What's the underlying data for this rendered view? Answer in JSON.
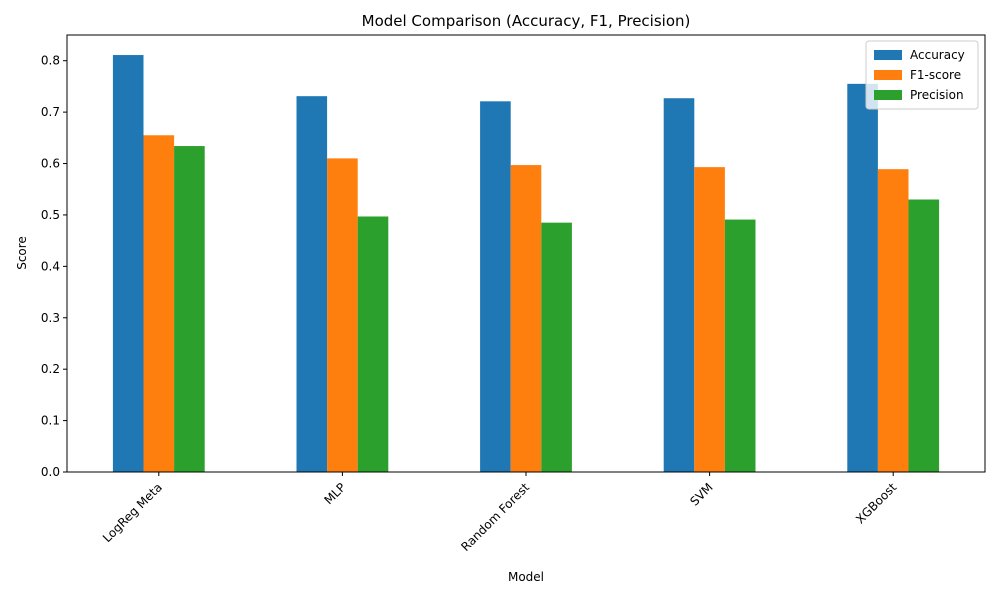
{
  "chart_data": {
    "type": "bar",
    "title": "Model Comparison (Accuracy, F1, Precision)",
    "xlabel": "Model",
    "ylabel": "Score",
    "categories": [
      "LogReg Meta",
      "MLP",
      "Random Forest",
      "SVM",
      "XGBoost"
    ],
    "series": [
      {
        "name": "Accuracy",
        "color": "#1f77b4",
        "values": [
          0.811,
          0.731,
          0.721,
          0.727,
          0.755
        ]
      },
      {
        "name": "F1-score",
        "color": "#ff7f0e",
        "values": [
          0.655,
          0.61,
          0.597,
          0.593,
          0.589
        ]
      },
      {
        "name": "Precision",
        "color": "#2ca02c",
        "values": [
          0.634,
          0.497,
          0.485,
          0.491,
          0.53
        ]
      }
    ],
    "ylim": [
      0,
      0.85
    ],
    "yticks": [
      "0.0",
      "0.1",
      "0.2",
      "0.3",
      "0.4",
      "0.5",
      "0.6",
      "0.7",
      "0.8"
    ],
    "grid": false,
    "legend_position": "top-right",
    "xtick_rotation": "45"
  }
}
